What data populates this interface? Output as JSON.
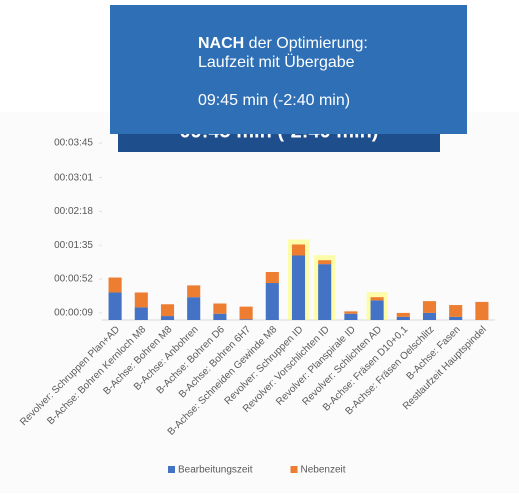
{
  "chart_data": {
    "type": "stacked_bar",
    "categories": [
      "Revolver: Schruppen Plan+AD",
      "B-Achse: Bohren Kernloch M8",
      "B-Achse: Bohren M8",
      "B-Achse: Anbohren",
      "B-Achse: Bohren D6",
      "B-Achse: Bohren 6H7",
      "B-Achse: Schneiden Gewinde M8",
      "Revolver: Schruppen ID",
      "Revolver: Vorschlichten ID",
      "Revolver: Planspirale ID",
      "Revolver: Schlichten AD",
      "B-Achse: Fräsen D10+0,1",
      "B-Achse: Fräsen Oelschlitz",
      "B-Achse: Fasen",
      "Restlaufzeit Hauptspindel"
    ],
    "series": [
      {
        "name": "Bearbeitungszeit",
        "color": "#4472c4",
        "values": [
          35,
          16,
          5,
          29,
          8,
          1,
          47,
          82,
          71,
          8,
          25,
          4,
          9,
          4,
          0
        ]
      },
      {
        "name": "Nebenzeit",
        "color": "#ed7d31",
        "values": [
          19,
          19,
          15,
          15,
          13,
          16,
          14,
          14,
          5,
          3,
          4,
          5,
          15,
          15,
          23
        ]
      }
    ],
    "ylim": [
      0,
      225
    ],
    "yticks": [
      {
        "value": 9,
        "label": "00:00:09"
      },
      {
        "value": 52,
        "label": "00:00:52"
      },
      {
        "value": 95,
        "label": "00:01:35"
      },
      {
        "value": 138,
        "label": "00:02:18"
      },
      {
        "value": 181,
        "label": "00:03:01"
      },
      {
        "value": 225,
        "label": "00:03:45"
      }
    ],
    "legend": "bottom"
  },
  "overlay": {
    "title_bold": "NACH",
    "title_rest": "der Optimierung:",
    "subtitle": "Laufzeit mit Übergabe",
    "summary": "09:45 min (-2:40 min)"
  }
}
